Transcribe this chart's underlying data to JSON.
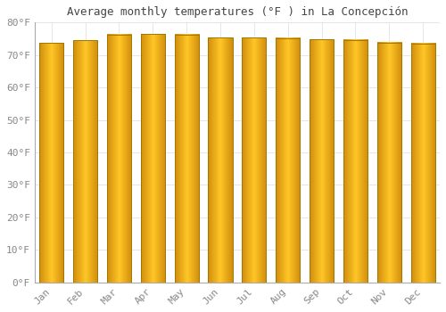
{
  "title": "Average monthly temperatures (°F ) in La Concepción",
  "months": [
    "Jan",
    "Feb",
    "Mar",
    "Apr",
    "May",
    "Jun",
    "Jul",
    "Aug",
    "Sep",
    "Oct",
    "Nov",
    "Dec"
  ],
  "values": [
    73.8,
    74.5,
    76.3,
    76.5,
    76.3,
    75.4,
    75.4,
    75.2,
    74.8,
    74.7,
    73.9,
    73.6
  ],
  "bar_color_center": "#FFB300",
  "bar_color_edge": "#E8A000",
  "bar_gradient_left": "#F5A623",
  "bar_gradient_center": "#FFD040",
  "bar_gradient_right": "#E89000",
  "bar_border_color": "#B8860B",
  "background_color": "#FFFFFF",
  "grid_color": "#E0E0E8",
  "text_color": "#888888",
  "ylim": [
    0,
    80
  ],
  "yticks": [
    0,
    10,
    20,
    30,
    40,
    50,
    60,
    70,
    80
  ],
  "title_fontsize": 9,
  "tick_fontsize": 8
}
